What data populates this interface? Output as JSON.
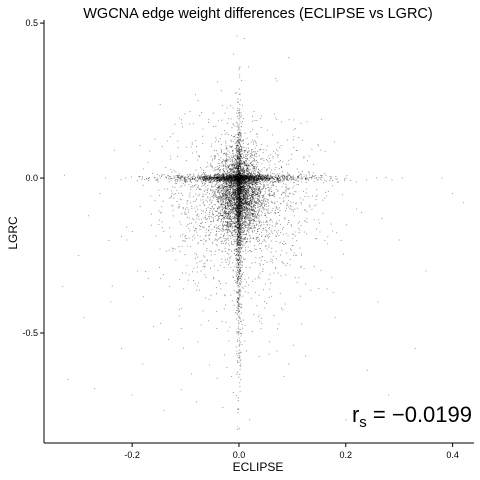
{
  "chart_data": {
    "type": "scatter",
    "title": "WGCNA edge weight differences (ECLIPSE vs LGRC)",
    "xlabel": "ECLIPSE",
    "ylabel": "LGRC",
    "xlim": [
      -0.365,
      0.44
    ],
    "ylim": [
      -0.855,
      0.51
    ],
    "x_ticks": [
      {
        "value": -0.2,
        "label": "-0.2"
      },
      {
        "value": 0.0,
        "label": "0.0"
      },
      {
        "value": 0.2,
        "label": "0.2"
      },
      {
        "value": 0.4,
        "label": "0.4"
      }
    ],
    "y_ticks": [
      {
        "value": 0.5,
        "label": "0.5"
      },
      {
        "value": 0.0,
        "label": "0.0"
      },
      {
        "value": -0.5,
        "label": "-0.5"
      }
    ],
    "grid": false,
    "legend": "none",
    "point_color": "#000000",
    "annotation": {
      "symbol": "r",
      "subscript": "s",
      "relation": " = ",
      "value": "−0.0199"
    },
    "distribution": {
      "description_values": {
        "center": [
          0.0,
          -0.02
        ],
        "x_extent": [
          -0.33,
          0.42
        ],
        "y_extent": [
          -0.78,
          0.45
        ],
        "skew": "negative y"
      },
      "points": [
        [
          -0.33,
          -0.35
        ],
        [
          -0.32,
          -0.65
        ],
        [
          -0.3,
          -0.25
        ],
        [
          -0.29,
          -0.45
        ],
        [
          -0.27,
          -0.68
        ],
        [
          -0.26,
          -0.05
        ],
        [
          -0.25,
          0.0
        ],
        [
          -0.24,
          -0.4
        ],
        [
          -0.22,
          -0.55
        ],
        [
          -0.21,
          -0.2
        ],
        [
          -0.2,
          -0.7
        ],
        [
          -0.19,
          -0.3
        ],
        [
          -0.18,
          -0.6
        ],
        [
          -0.17,
          0.05
        ],
        [
          -0.16,
          -0.48
        ],
        [
          -0.15,
          -0.15
        ],
        [
          -0.14,
          -0.75
        ],
        [
          -0.13,
          -0.35
        ],
        [
          0.38,
          0.0
        ],
        [
          0.4,
          -0.05
        ],
        [
          0.42,
          -0.08
        ],
        [
          0.35,
          -0.3
        ],
        [
          0.33,
          -0.55
        ],
        [
          0.3,
          -0.2
        ],
        [
          0.28,
          -0.7
        ],
        [
          0.26,
          -0.4
        ],
        [
          0.24,
          -0.62
        ],
        [
          0.22,
          -0.1
        ],
        [
          0.2,
          -0.78
        ],
        [
          0.18,
          -0.45
        ],
        [
          0.01,
          0.45
        ],
        [
          -0.01,
          0.4
        ],
        [
          0.0,
          0.35
        ],
        [
          0.02,
          -0.78
        ],
        [
          -0.03,
          -0.74
        ]
      ]
    }
  }
}
